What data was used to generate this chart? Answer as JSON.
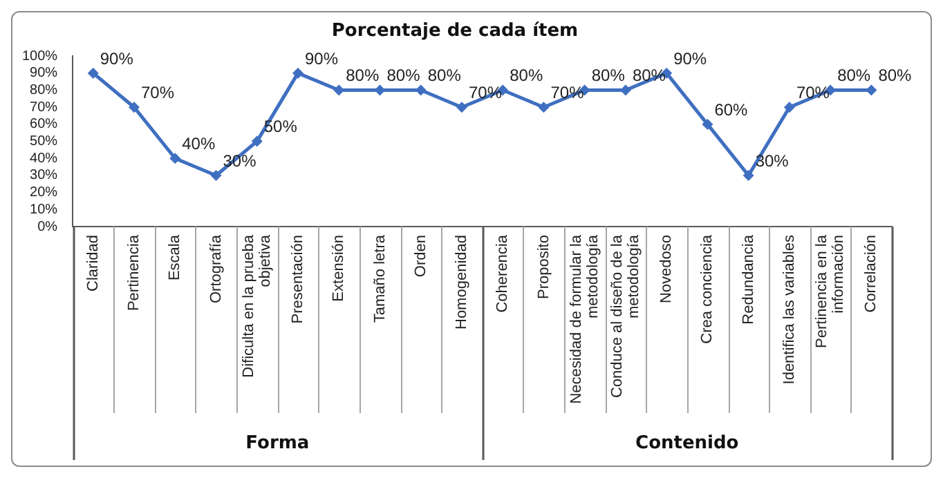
{
  "chart_data": {
    "type": "line",
    "title": "Porcentaje de cada ítem",
    "categories": [
      "Claridad",
      "Pertinencia",
      "Escala",
      "Ortografía",
      "Dificulta en la prueba objetiva",
      "Presentación",
      "Extensión",
      "Tamaño letra",
      "Orden",
      "Homogenidad",
      "Coherencia",
      "Proposito",
      "Necesidad de formular la metodología",
      "Conduce al diseño de la metodología",
      "Novedoso",
      "Crea conciencia",
      "Redundancia",
      "Identifica las variables",
      "Pertinencia en la información",
      "Correlación"
    ],
    "series": [
      {
        "color": "#3f6fc0",
        "values": [
          90,
          70,
          40,
          30,
          50,
          90,
          80,
          80,
          80,
          70,
          80,
          70,
          80,
          80,
          90,
          60,
          30,
          70,
          80,
          80
        ],
        "value_labels": [
          "90%",
          "70%",
          "40%",
          "30%",
          "50%",
          "90%",
          "80%",
          "80%",
          "80%",
          "70%",
          "80%",
          "70%",
          "80%",
          "80%",
          "90%",
          "60%",
          "30%",
          "70%",
          "80%",
          "80%"
        ]
      }
    ],
    "ylim": [
      0,
      100
    ],
    "yticks": [
      {
        "value": 0,
        "label": "0%"
      },
      {
        "value": 10,
        "label": "10%"
      },
      {
        "value": 20,
        "label": "20%"
      },
      {
        "value": 30,
        "label": "30%"
      },
      {
        "value": 40,
        "label": "40%"
      },
      {
        "value": 50,
        "label": "50%"
      },
      {
        "value": 60,
        "label": "60%"
      },
      {
        "value": 70,
        "label": "70%"
      },
      {
        "value": 80,
        "label": "80%"
      },
      {
        "value": 90,
        "label": "90%"
      },
      {
        "value": 100,
        "label": "100%"
      }
    ],
    "annotations": [
      "Forma",
      "Contenido"
    ],
    "grid": false,
    "legend": false,
    "marker": "diamond",
    "line_style": "solid"
  }
}
